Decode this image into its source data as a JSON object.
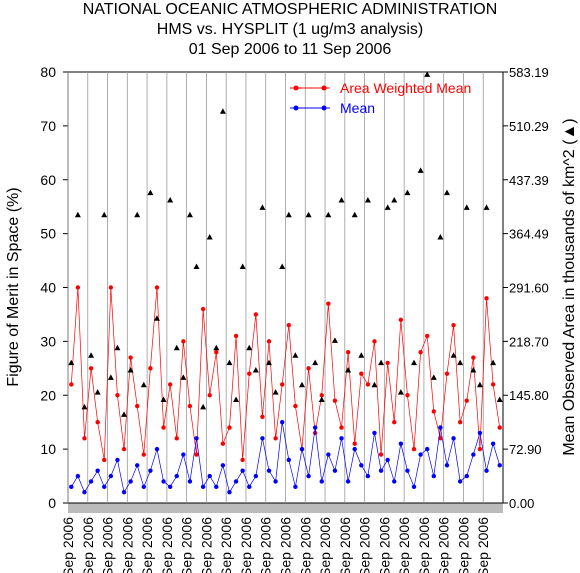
{
  "chart_data": {
    "type": "line",
    "title": "NATIONAL OCEANIC ATMOSPHERIC ADMINISTRATION",
    "subtitle": "HMS vs. HYSPLIT (1 ug/m3 analysis)",
    "date_range": "01 Sep 2006 to 11 Sep 2006",
    "y_label": "Figure of Merit in Space (%)",
    "y2_label": "Mean Observed Area in thousands of km^2 (▲)",
    "categories": [
      "Sep 2006",
      null,
      null,
      "Sep 2006",
      null,
      null,
      "Sep 2006",
      null,
      null,
      "Sep 2006",
      null,
      null,
      "Sep 2006",
      null,
      null,
      "Sep 2006",
      null,
      null,
      "Sep 2006",
      null,
      null,
      "Sep 2006",
      null,
      null,
      "Sep 2006",
      null,
      null,
      "Sep 2006",
      null,
      null,
      "Sep 2006",
      null,
      null,
      "Sep 2006",
      null,
      null,
      "Sep 2006",
      null,
      null,
      "Sep 2006",
      null,
      null,
      "Sep 2006",
      null,
      null,
      "Sep 2006",
      null,
      null,
      "Sep 2006",
      null,
      null,
      "Sep 2006",
      null,
      null,
      "Sep 2006",
      null,
      null,
      "Sep 2006",
      null,
      null,
      "Sep 2006",
      null,
      null,
      "Sep 2006",
      null,
      null
    ],
    "series": [
      {
        "name": "Area Weighted Mean",
        "color": "#ff0000",
        "values": [
          22,
          40,
          12,
          25,
          15,
          8,
          40,
          20,
          10,
          27,
          18,
          9,
          25,
          40,
          14,
          22,
          12,
          30,
          18,
          9,
          36,
          20,
          28,
          11,
          14,
          31,
          8,
          24,
          35,
          16,
          30,
          12,
          22,
          33,
          18,
          10,
          25,
          13,
          20,
          37,
          19,
          14,
          28,
          11,
          24,
          22,
          30,
          9,
          26,
          15,
          34,
          20,
          10,
          28,
          31,
          17,
          12,
          24,
          33,
          15,
          19,
          27,
          10,
          38,
          22,
          14
        ]
      },
      {
        "name": "Mean",
        "color": "#0000ff",
        "values": [
          3,
          5,
          2,
          4,
          6,
          3,
          5,
          8,
          2,
          4,
          7,
          3,
          6,
          10,
          4,
          3,
          5,
          9,
          4,
          12,
          3,
          5,
          3,
          7,
          2,
          4,
          6,
          3,
          5,
          12,
          6,
          4,
          15,
          8,
          3,
          10,
          5,
          14,
          4,
          9,
          6,
          12,
          4,
          10,
          7,
          5,
          13,
          6,
          8,
          4,
          11,
          6,
          3,
          9,
          10,
          5,
          14,
          7,
          12,
          4,
          5,
          9,
          13,
          6,
          11,
          7
        ]
      },
      {
        "color": "#000000",
        "axis": "y2",
        "values": [
          190,
          390,
          130,
          200,
          150,
          390,
          170,
          210,
          120,
          180,
          390,
          160,
          420,
          250,
          140,
          410,
          210,
          170,
          390,
          320,
          130,
          360,
          210,
          530,
          190,
          140,
          320,
          210,
          180,
          400,
          190,
          150,
          320,
          390,
          200,
          160,
          390,
          190,
          140,
          390,
          220,
          410,
          180,
          390,
          200,
          410,
          160,
          190,
          400,
          410,
          150,
          420,
          190,
          450,
          580,
          170,
          360,
          420,
          200,
          190,
          400,
          180,
          160,
          400,
          190,
          140
        ]
      }
    ],
    "ylim": [
      0,
      80
    ],
    "yticks": [
      0,
      10,
      20,
      30,
      40,
      50,
      60,
      70,
      80
    ],
    "y2lim": [
      0,
      583.19
    ],
    "y2ticks": [
      {
        "value": 0,
        "label": "0.00"
      },
      {
        "value": 72.9,
        "label": "72.90"
      },
      {
        "value": 145.8,
        "label": "145.80"
      },
      {
        "value": 218.7,
        "label": "218.70"
      },
      {
        "value": 291.6,
        "label": "291.60"
      },
      364.49,
      437.39,
      510.29,
      583.19
    ],
    "legend": "top-right"
  }
}
